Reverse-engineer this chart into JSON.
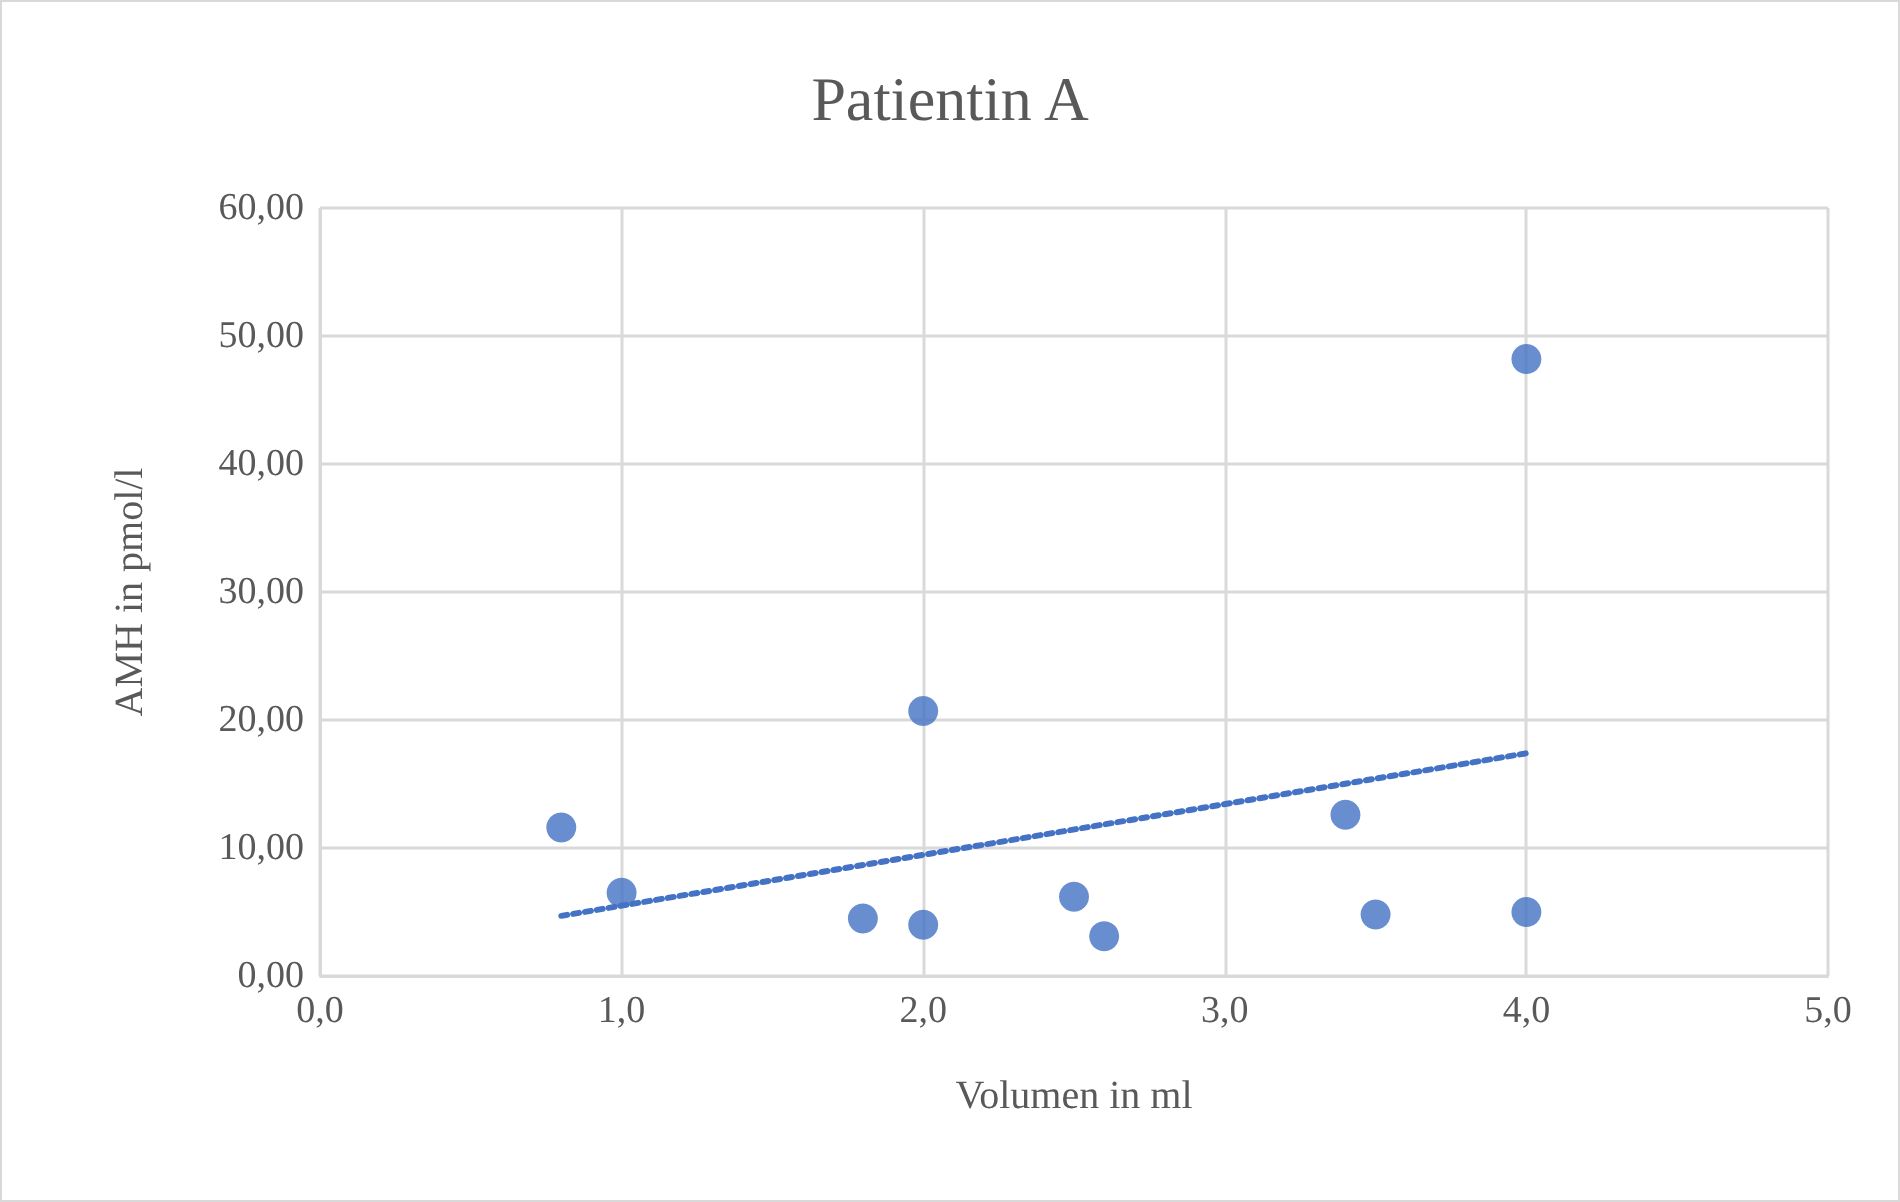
{
  "chart_data": {
    "type": "scatter",
    "title": "Patientin A",
    "xlabel": "Volumen in ml",
    "ylabel": "AMH in pmol/l",
    "series": [
      {
        "color": "#4472c4",
        "marker": "circle",
        "x": [
          0.8,
          1.0,
          1.8,
          2.0,
          2.0,
          2.5,
          2.6,
          3.4,
          3.5,
          4.0,
          4.0
        ],
        "values": [
          11.6,
          6.5,
          4.5,
          20.7,
          4.0,
          6.2,
          3.1,
          12.6,
          4.8,
          48.2,
          5.0
        ]
      },
      {
        "type": "line",
        "color": "#4472c4",
        "line_style": "dotted",
        "marker": "none",
        "x": [
          0.8,
          4.0
        ],
        "values": [
          4.7,
          17.4
        ]
      }
    ],
    "xlim": [
      0,
      5
    ],
    "xticks": [
      {
        "value": 0,
        "label": "0,0"
      },
      {
        "value": 1,
        "label": "1,0"
      },
      {
        "value": 2,
        "label": "2,0"
      },
      {
        "value": 3,
        "label": "3,0"
      },
      {
        "value": 4,
        "label": "4,0"
      },
      {
        "value": 5,
        "label": "5,0"
      }
    ],
    "ylim": [
      0,
      60
    ],
    "yticks": [
      {
        "value": 0,
        "label": "0,00"
      },
      {
        "value": 10,
        "label": "10,00"
      },
      {
        "value": 20,
        "label": "20,00"
      },
      {
        "value": 30,
        "label": "30,00"
      },
      {
        "value": 40,
        "label": "40,00"
      },
      {
        "value": 50,
        "label": "50,00"
      },
      {
        "value": 60,
        "label": "60,00"
      }
    ],
    "grid": true
  }
}
